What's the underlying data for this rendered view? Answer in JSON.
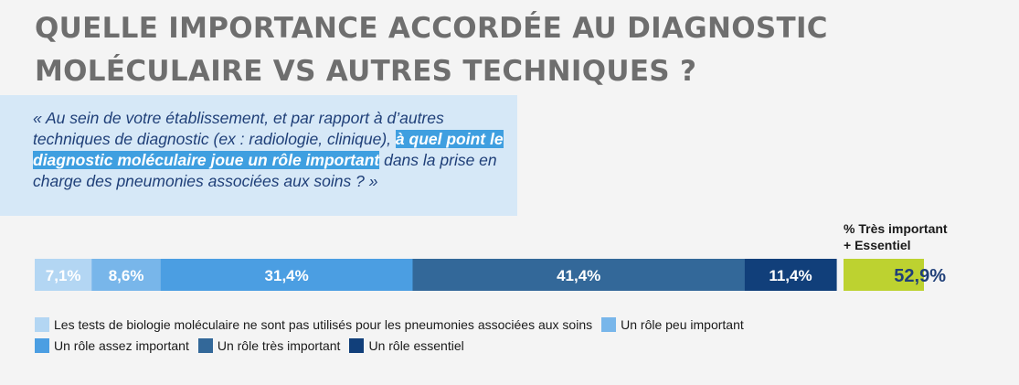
{
  "title": {
    "line1": "QUELLE IMPORTANCE ACCORDÉE AU DIAGNOSTIC",
    "line2": "MOLÉCULAIRE VS AUTRES TECHNIQUES ?"
  },
  "question": {
    "before": "« Au sein de votre établissement, et par rapport à d’autres techniques de diagnostic (ex : radiologie, clinique), ",
    "highlight": "à quel point le diagnostic moléculaire joue un rôle important",
    "after": " dans la prise en charge des pneumonies associées aux soins ? »"
  },
  "chart_data": {
    "type": "bar",
    "orientation": "horizontal-stacked-100",
    "unit": "%",
    "series": [
      {
        "name": "Les tests de biologie moléculaire ne sont pas utilisés pour les pneumonies associées aux soins",
        "value": 7.1,
        "label": "7,1%",
        "color": "#b3d6f3"
      },
      {
        "name": "Un rôle peu important",
        "value": 8.6,
        "label": "8,6%",
        "color": "#78b6ea"
      },
      {
        "name": "Un rôle assez important",
        "value": 31.4,
        "label": "31,4%",
        "color": "#4b9ee2"
      },
      {
        "name": "Un rôle très important",
        "value": 41.4,
        "label": "41,4%",
        "color": "#336899"
      },
      {
        "name": "Un rôle essentiel",
        "value": 11.4,
        "label": "11,4%",
        "color": "#113f7a"
      }
    ],
    "summary": {
      "title_line1": "% Très important",
      "title_line2": "+ Essentiel",
      "value": 52.9,
      "label": "52,9%",
      "color": "#bdd230"
    }
  }
}
